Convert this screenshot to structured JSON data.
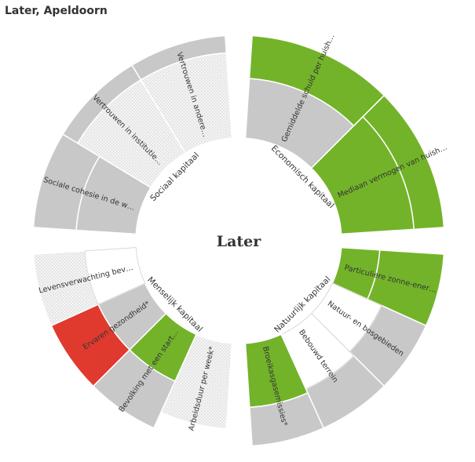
{
  "title": "Later, Apeldoorn",
  "colors": {
    "green": "#73b32a",
    "red": "#e03a2f",
    "gray": "#c8c8c8",
    "white": "#ffffff",
    "dotted": "#e8e8e8",
    "text": "#333333"
  },
  "chart_data": {
    "type": "radial-segment",
    "center_label": "Later",
    "groups": [
      {
        "name": "Economisch kapitaal",
        "indicators": [
          {
            "label": "Gemiddelde schuld per huish…",
            "fill": "gray",
            "score": 0.7,
            "outer_band": "green"
          },
          {
            "label": "Mediaan vermogen van huish…",
            "fill": "green",
            "score": 0.85,
            "outer_band": "green"
          }
        ]
      },
      {
        "name": "Natuurlijk kapitaal",
        "indicators": [
          {
            "label": "Particuliere zonne-ener…",
            "fill": "green",
            "score": 0.45,
            "outer_band": "green"
          },
          {
            "label": "Natuur- en bosgebieden",
            "fill": "white",
            "score": 0.63,
            "outer_band": "gray"
          },
          {
            "label": "Bebouwd terrein",
            "fill": "white",
            "score": 0.7,
            "outer_band": "gray"
          },
          {
            "label": "Broeikasgasemissies*",
            "fill": "green",
            "score": 0.75,
            "outer_band": "gray"
          }
        ]
      },
      {
        "name": "Menselijk kapitaal",
        "indicators": [
          {
            "label": "Arbeidsduur per week*",
            "fill": "dotted",
            "score": 1.0,
            "outer_band": "none"
          },
          {
            "label": "Bevolking met een start…",
            "fill": "green",
            "score": 0.6,
            "outer_band": "gray"
          },
          {
            "label": "Ervaren gezondheid*",
            "fill": "gray",
            "score": 0.6,
            "outer_band": "red"
          },
          {
            "label": "Levensverwachting bev…",
            "fill": "white",
            "score": 0.6,
            "outer_band": "dotted"
          }
        ]
      },
      {
        "name": "Sociaal kapitaal",
        "indicators": [
          {
            "label": "Sociale cohesie in de w…",
            "fill": "gray",
            "score": 0.7,
            "outer_band": "gray"
          },
          {
            "label": "Vertrouwen in institutie…",
            "fill": "dotted",
            "score": 1.0,
            "outer_band": "gray"
          },
          {
            "label": "Vertrouwen in andere…",
            "fill": "dotted",
            "score": 1.0,
            "outer_band": "gray"
          }
        ]
      }
    ]
  }
}
